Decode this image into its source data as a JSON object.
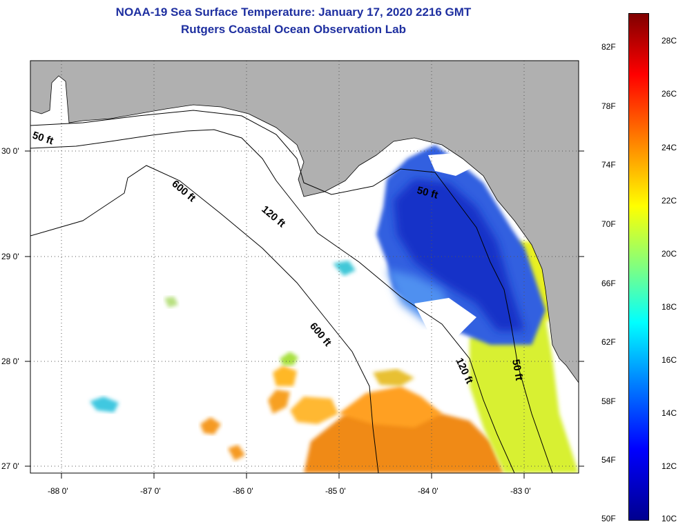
{
  "title": {
    "line1": "NOAA-19 Sea Surface Temperature:  January 17, 2020 2216 GMT",
    "line2": "Rutgers Coastal Ocean Observation Lab"
  },
  "axes": {
    "lon_ticks": [
      "-88 0'",
      "-87 0'",
      "-86 0'",
      "-85 0'",
      "-84 0'",
      "-83 0'"
    ],
    "lat_ticks": [
      "30 0'",
      "29 0'",
      "28 0'",
      "27 0'"
    ],
    "lon_range": [
      -88.33,
      -82.45
    ],
    "lat_range": [
      26.95,
      30.87
    ]
  },
  "contours": {
    "depth_labels": [
      "50 ft",
      "600 ft",
      "120 ft",
      "50 ft",
      "600 ft",
      "120 ft",
      "50 ft"
    ]
  },
  "colorbar": {
    "fahrenheit_labels": [
      "82F",
      "78F",
      "74F",
      "70F",
      "66F",
      "62F",
      "58F",
      "54F",
      "50F"
    ],
    "celsius_labels": [
      "28C",
      "26C",
      "24C",
      "22C",
      "20C",
      "18C",
      "16C",
      "14C",
      "12C",
      "10C"
    ],
    "range_c": [
      10,
      29
    ],
    "colors": [
      "#00008f",
      "#0000ff",
      "#0080ff",
      "#00ffff",
      "#80ff80",
      "#ffff00",
      "#ff8000",
      "#ff0000",
      "#800000"
    ]
  },
  "colors": {
    "land": "#b0b0b0",
    "no_data": "#ffffff",
    "title": "#1e2fa0"
  }
}
